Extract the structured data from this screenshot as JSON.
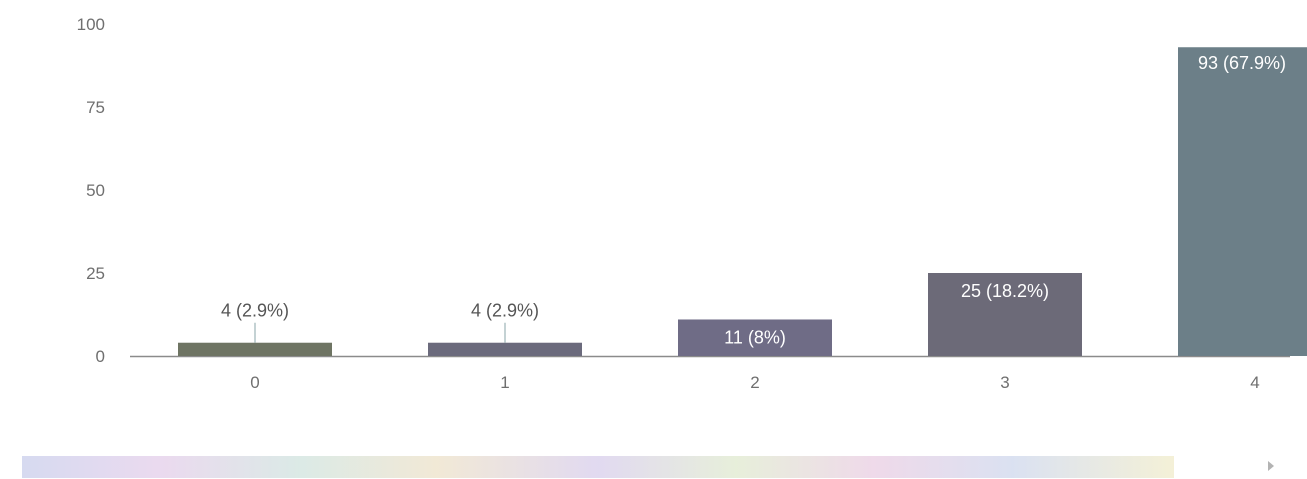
{
  "chart_data": {
    "type": "bar",
    "categories": [
      "0",
      "1",
      "2",
      "3",
      "4"
    ],
    "values": [
      4,
      4,
      11,
      25,
      93
    ],
    "data_labels": [
      "4 (2.9%)",
      "4 (2.9%)",
      "11 (8%)",
      "25 (18.2%)",
      "93 (67.9%)"
    ],
    "title": "",
    "xlabel": "",
    "ylabel": "",
    "ylim": [
      0,
      100
    ],
    "yticks": [
      "0",
      "25",
      "50",
      "75",
      "100"
    ],
    "grid": false,
    "legend": "none",
    "bar_colors": [
      "#6e7463",
      "#6b6a7c",
      "#6f6c86",
      "#6c6a78",
      "#6c7f88"
    ],
    "label_colors": {
      "outside": "#555555",
      "inside": "#ffffff"
    }
  }
}
